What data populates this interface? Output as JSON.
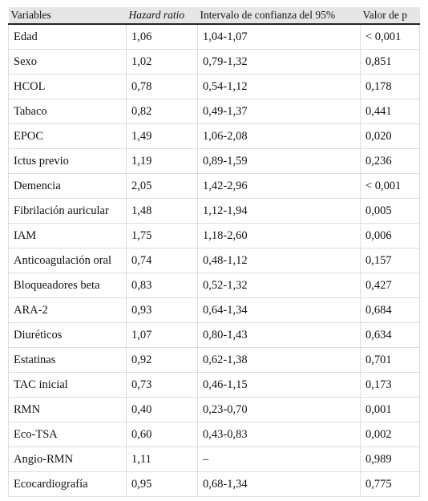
{
  "table": {
    "header": [
      "Variables",
      "Hazard ratio",
      "Intervalo de confianza del 95%",
      "Valor de p"
    ],
    "rows": [
      [
        "Edad",
        "1,06",
        "1,04-1,07",
        "< 0,001"
      ],
      [
        "Sexo",
        "1,02",
        "0,79-1,32",
        "0,851"
      ],
      [
        "HCOL",
        "0,78",
        "0,54-1,12",
        "0,178"
      ],
      [
        "Tabaco",
        "0,82",
        "0,49-1,37",
        "0,441"
      ],
      [
        "EPOC",
        "1,49",
        "1,06-2,08",
        "0,020"
      ],
      [
        "Ictus previo",
        "1,19",
        "0,89-1,59",
        "0,236"
      ],
      [
        "Demencia",
        "2,05",
        "1,42-2,96",
        "< 0,001"
      ],
      [
        "Fibrilación auricular",
        "1,48",
        "1,12-1,94",
        "0,005"
      ],
      [
        "IAM",
        "1,75",
        "1,18-2,60",
        "0,006"
      ],
      [
        "Anticoagulación oral",
        "0,74",
        "0,48-1,12",
        "0,157"
      ],
      [
        "Bloqueadores beta",
        "0,83",
        "0,52-1,32",
        "0,427"
      ],
      [
        "ARA-2",
        "0,93",
        "0,64-1,34",
        "0,684"
      ],
      [
        "Diuréticos",
        "1,07",
        "0,80-1,43",
        "0,634"
      ],
      [
        "Estatinas",
        "0,92",
        "0,62-1,38",
        "0,701"
      ],
      [
        "TAC inicial",
        "0,73",
        "0,46-1,15",
        "0,173"
      ],
      [
        "RMN",
        "0,40",
        "0,23-0,70",
        "0,001"
      ],
      [
        "Eco-TSA",
        "0,60",
        "0,43-0,83",
        "0,002"
      ],
      [
        "Angio-RMN",
        "1,11",
        "–",
        "0,989"
      ],
      [
        "Ecocardiografía",
        "0,95",
        "0,68-1,34",
        "0,775"
      ]
    ]
  }
}
